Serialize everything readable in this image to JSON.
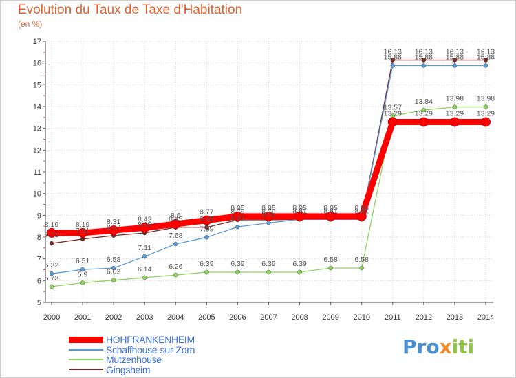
{
  "title": "Evolution du Taux de Taxe d'Habitation",
  "subtitle": "(en %)",
  "logo": {
    "part1": "Pro",
    "part2": "x",
    "part3": "iti"
  },
  "chart_data": {
    "type": "line",
    "x": [
      2000,
      2001,
      2002,
      2003,
      2004,
      2005,
      2006,
      2007,
      2008,
      2009,
      2010,
      2011,
      2012,
      2013,
      2014
    ],
    "ylim": [
      5,
      17
    ],
    "yticks": [
      5,
      6,
      7,
      8,
      9,
      10,
      11,
      12,
      13,
      14,
      15,
      16,
      17
    ],
    "grid": true,
    "legend_position": "bottom-left",
    "series": [
      {
        "name": "HOHFRANKENHEIM",
        "color": "#ff0000",
        "values": [
          8.19,
          8.19,
          8.31,
          8.43,
          8.6,
          8.77,
          8.95,
          8.95,
          8.95,
          8.95,
          8.95,
          13.29,
          13.29,
          13.29,
          13.29
        ],
        "labels": [
          "8.19",
          "8.19",
          "8.31",
          "8.43",
          "8.6",
          "8.77",
          "8.95",
          "8.95",
          "8.95",
          "8.95",
          "8.95",
          "13.29",
          "13.29",
          "13.29",
          "13.29"
        ]
      },
      {
        "name": "Schaffhouse-sur-Zorn",
        "color": "#5b9bd5",
        "values": [
          6.32,
          6.51,
          6.58,
          7.11,
          7.68,
          7.99,
          8.47,
          8.65,
          8.81,
          8.81,
          8.81,
          15.88,
          15.88,
          15.88,
          15.88
        ],
        "labels": [
          "6.32",
          "6.51",
          "6.58",
          "7.11",
          "7.68",
          "7.99",
          "8.47",
          "8.65",
          "8.81",
          "8.81",
          "8.81",
          "15.88",
          "15.88",
          "15.88",
          "15.88"
        ]
      },
      {
        "name": "Mutzenhouse",
        "color": "#8fd35f",
        "values": [
          5.73,
          5.9,
          6.02,
          6.14,
          6.26,
          6.39,
          6.39,
          6.39,
          6.39,
          6.58,
          6.58,
          13.57,
          13.84,
          13.98,
          13.98
        ],
        "labels": [
          "5.73",
          "5.9",
          "6.02",
          "6.14",
          "6.26",
          "6.39",
          "6.39",
          "6.39",
          "6.39",
          "6.58",
          "6.58",
          "13.57",
          "13.84",
          "13.98",
          "13.98"
        ]
      },
      {
        "name": "Gingsheim",
        "color": "#7b2a2a",
        "values": [
          7.71,
          7.91,
          8.07,
          8.19,
          8.45,
          8.45,
          8.79,
          8.79,
          8.81,
          8.81,
          8.81,
          16.13,
          16.13,
          16.13,
          16.13
        ],
        "labels": [
          "7.71",
          "7.91",
          "8.07",
          "8.19",
          "8.45",
          "8.45",
          "8.79",
          "8.79",
          "8.81",
          "8.81",
          "8.81",
          "16.13",
          "16.13",
          "16.13",
          "16.13"
        ]
      }
    ]
  }
}
